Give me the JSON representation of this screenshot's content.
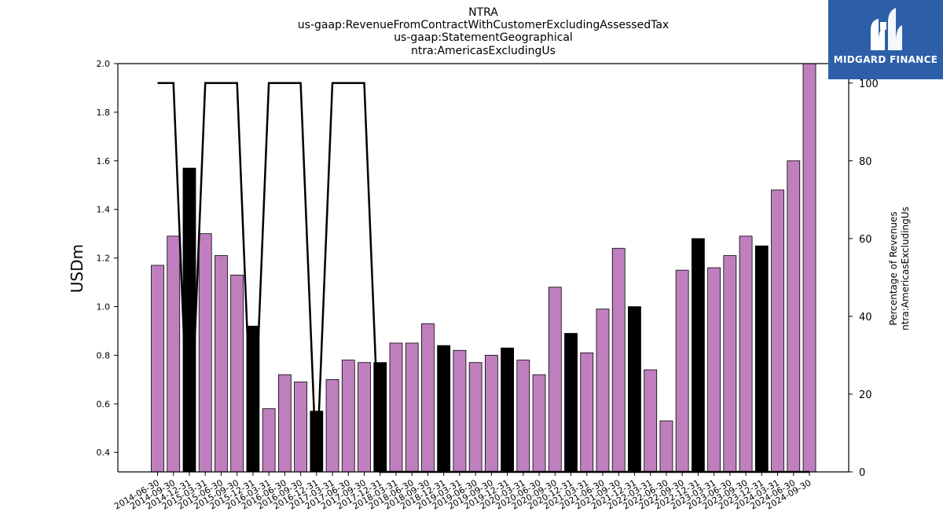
{
  "chart_data": {
    "type": "bar",
    "title_lines": [
      "NTRA",
      "us-gaap:RevenueFromContractWithCustomerExcludingAssessedTax",
      "us-gaap:StatementGeographical",
      "ntra:AmericasExcludingUs"
    ],
    "ylabel": "USDm",
    "y2label_lines": [
      "Percentage of Revenues",
      "ntra:AmericasExcludingUs"
    ],
    "ylim": [
      0.32,
      2.0
    ],
    "y2lim": [
      0,
      105
    ],
    "yticks": [
      "0.4",
      "0.6",
      "0.8",
      "1.0",
      "1.2",
      "1.4",
      "1.6",
      "1.8",
      "2.0"
    ],
    "y2ticks": [
      "0",
      "20",
      "40",
      "60",
      "80",
      "100"
    ],
    "categories": [
      "2014-06-30",
      "2014-09-30",
      "2014-12-31",
      "2015-03-31",
      "2015-06-30",
      "2015-09-30",
      "2015-12-31",
      "2016-03-31",
      "2016-06-30",
      "2016-09-30",
      "2016-12-31",
      "2017-03-31",
      "2017-06-30",
      "2017-09-30",
      "2017-12-31",
      "2018-03-31",
      "2018-06-30",
      "2018-09-30",
      "2018-12-31",
      "2019-03-31",
      "2019-06-30",
      "2019-09-30",
      "2019-12-31",
      "2020-03-31",
      "2020-06-30",
      "2020-09-30",
      "2020-12-31",
      "2021-03-31",
      "2021-06-30",
      "2021-09-30",
      "2021-12-31",
      "2022-03-31",
      "2022-06-30",
      "2022-09-30",
      "2022-12-31",
      "2023-03-31",
      "2023-06-30",
      "2023-09-30",
      "2023-12-31",
      "2024-03-31",
      "2024-06-30",
      "2024-09-30"
    ],
    "values": [
      1.17,
      1.29,
      1.57,
      1.3,
      1.21,
      1.13,
      0.92,
      0.58,
      0.72,
      0.69,
      0.57,
      0.7,
      0.78,
      0.77,
      0.77,
      0.85,
      0.85,
      0.93,
      0.84,
      0.82,
      0.77,
      0.8,
      0.83,
      0.78,
      0.72,
      1.08,
      0.89,
      0.81,
      0.99,
      1.24,
      1.0,
      0.74,
      0.53,
      1.15,
      1.28,
      1.16,
      1.21,
      1.29,
      1.25,
      1.48,
      1.6,
      2.0
    ],
    "bar_kind": [
      "q",
      "q",
      "y",
      "q",
      "q",
      "q",
      "y",
      "q",
      "q",
      "q",
      "y",
      "q",
      "q",
      "q",
      "y",
      "q",
      "q",
      "q",
      "y",
      "q",
      "q",
      "q",
      "y",
      "q",
      "q",
      "q",
      "y",
      "q",
      "q",
      "q",
      "y",
      "q",
      "q",
      "q",
      "y",
      "q",
      "q",
      "q",
      "y",
      "q",
      "q",
      "q"
    ],
    "percent": [
      100,
      100,
      0,
      100,
      100,
      100,
      0,
      100,
      100,
      100,
      0,
      100,
      100,
      100,
      0,
      0,
      0,
      0,
      0,
      0,
      0,
      0,
      0,
      0,
      0,
      0,
      0,
      0,
      0,
      0,
      0,
      0,
      0,
      0,
      0,
      0,
      0,
      0,
      0,
      0,
      0,
      0
    ],
    "colors": {
      "quarter": "#bf7fbf",
      "annual": "#000000",
      "line": "#000000"
    }
  },
  "logo": {
    "text": "MIDGARD FINANCE",
    "color": "#2d5fa8"
  }
}
